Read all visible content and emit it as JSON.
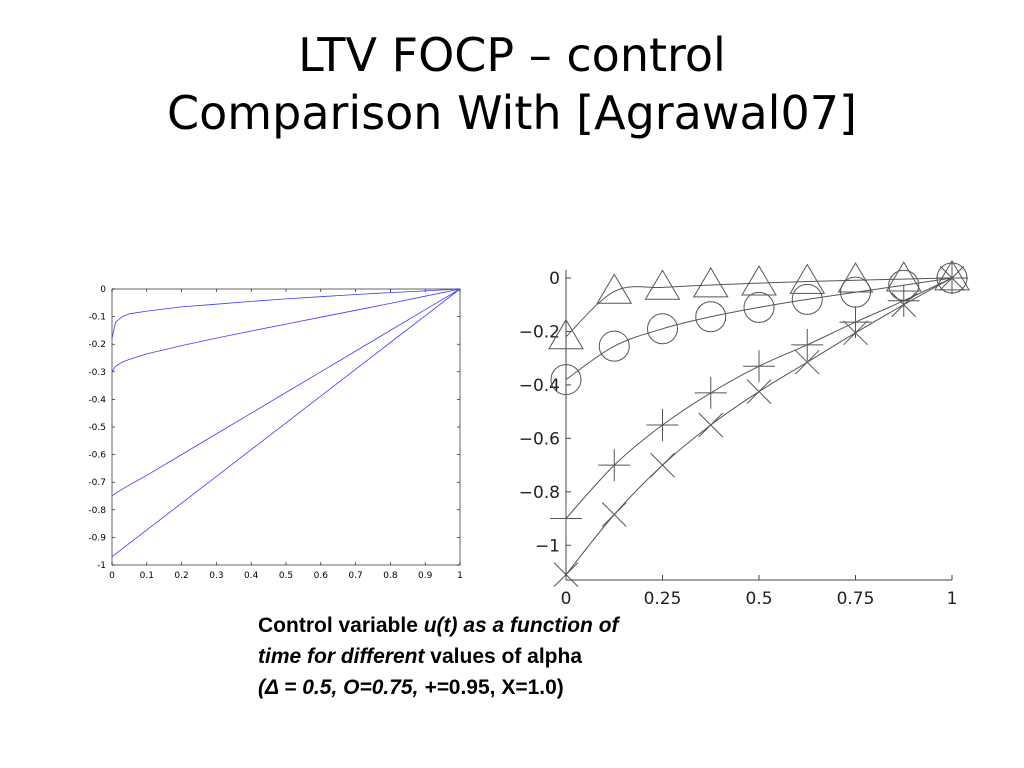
{
  "slide": {
    "title_line1": "LTV FOCP – control",
    "title_line2": "Comparison With [Agrawal07]"
  },
  "caption": {
    "p1": "Control variable ",
    "p2": "u(t) as a function of",
    "p3": "time for different",
    "p4": " values of alpha",
    "p5": "(Δ = 0.5,  O=0.75, +=",
    "p6": "0.95, X=1.0)"
  },
  "chart_data": [
    {
      "type": "line",
      "xlim": [
        0,
        1
      ],
      "ylim": [
        -1,
        0
      ],
      "xticks": [
        "0",
        "0.1",
        "0.2",
        "0.3",
        "0.4",
        "0.5",
        "0.6",
        "0.7",
        "0.8",
        "0.9",
        "1"
      ],
      "yticks": [
        "0",
        "-0.1",
        "-0.2",
        "-0.3",
        "-0.4",
        "-0.5",
        "-0.6",
        "-0.7",
        "-0.8",
        "-0.9",
        "-1"
      ],
      "line_color": "#3b3bff",
      "series": [
        {
          "x": [
            0,
            0.01,
            0.03,
            0.05,
            0.1,
            0.2,
            0.3,
            0.4,
            0.5,
            0.6,
            0.7,
            0.8,
            0.9,
            1.0
          ],
          "values": [
            -0.18,
            -0.12,
            -0.1,
            -0.09,
            -0.08,
            -0.065,
            -0.055,
            -0.045,
            -0.036,
            -0.028,
            -0.02,
            -0.013,
            -0.007,
            0
          ]
        },
        {
          "x": [
            0,
            0.01,
            0.03,
            0.05,
            0.1,
            0.2,
            0.3,
            0.4,
            0.5,
            0.6,
            0.7,
            0.8,
            0.9,
            1.0
          ],
          "values": [
            -0.3,
            -0.28,
            -0.265,
            -0.255,
            -0.235,
            -0.205,
            -0.178,
            -0.152,
            -0.127,
            -0.102,
            -0.077,
            -0.052,
            -0.026,
            0
          ]
        },
        {
          "x": [
            0,
            0.01,
            0.05,
            0.1,
            0.2,
            0.3,
            0.4,
            0.5,
            0.6,
            0.7,
            0.8,
            0.9,
            1.0
          ],
          "values": [
            -0.75,
            -0.74,
            -0.71,
            -0.675,
            -0.6,
            -0.525,
            -0.45,
            -0.375,
            -0.3,
            -0.225,
            -0.15,
            -0.075,
            0
          ]
        },
        {
          "x": [
            0,
            0.1,
            0.2,
            0.3,
            0.4,
            0.5,
            0.6,
            0.7,
            0.8,
            0.9,
            1.0
          ],
          "values": [
            -0.97,
            -0.873,
            -0.776,
            -0.679,
            -0.582,
            -0.485,
            -0.388,
            -0.291,
            -0.194,
            -0.097,
            0
          ]
        }
      ]
    },
    {
      "type": "line",
      "xlim": [
        0,
        1
      ],
      "ylim": [
        -1.13,
        0.03
      ],
      "xticks": [
        0,
        0.25,
        0.5,
        0.75,
        1
      ],
      "xtick_labels": [
        "0",
        "0.25",
        "0.5",
        "0.75",
        "1"
      ],
      "yticks": [
        0,
        -0.2,
        -0.4,
        -0.6,
        -0.8,
        -1
      ],
      "ytick_labels": [
        "0",
        "−0.2",
        "−0.4",
        "−0.6",
        "−0.8",
        "−1"
      ],
      "line_color": "#555555",
      "marker_x": [
        0,
        0.125,
        0.25,
        0.375,
        0.5,
        0.625,
        0.75,
        0.875,
        1.0
      ],
      "series": [
        {
          "marker": "triangle",
          "values": [
            -0.22,
            -0.05,
            -0.035,
            -0.026,
            -0.019,
            -0.013,
            -0.008,
            -0.004,
            0
          ]
        },
        {
          "marker": "circle",
          "values": [
            -0.38,
            -0.255,
            -0.19,
            -0.145,
            -0.11,
            -0.08,
            -0.053,
            -0.027,
            0
          ]
        },
        {
          "marker": "plus",
          "values": [
            -0.9,
            -0.7,
            -0.55,
            -0.43,
            -0.33,
            -0.25,
            -0.165,
            -0.085,
            0
          ]
        },
        {
          "marker": "cross",
          "values": [
            -1.11,
            -0.885,
            -0.7,
            -0.55,
            -0.425,
            -0.315,
            -0.205,
            -0.1,
            0
          ]
        }
      ]
    }
  ]
}
